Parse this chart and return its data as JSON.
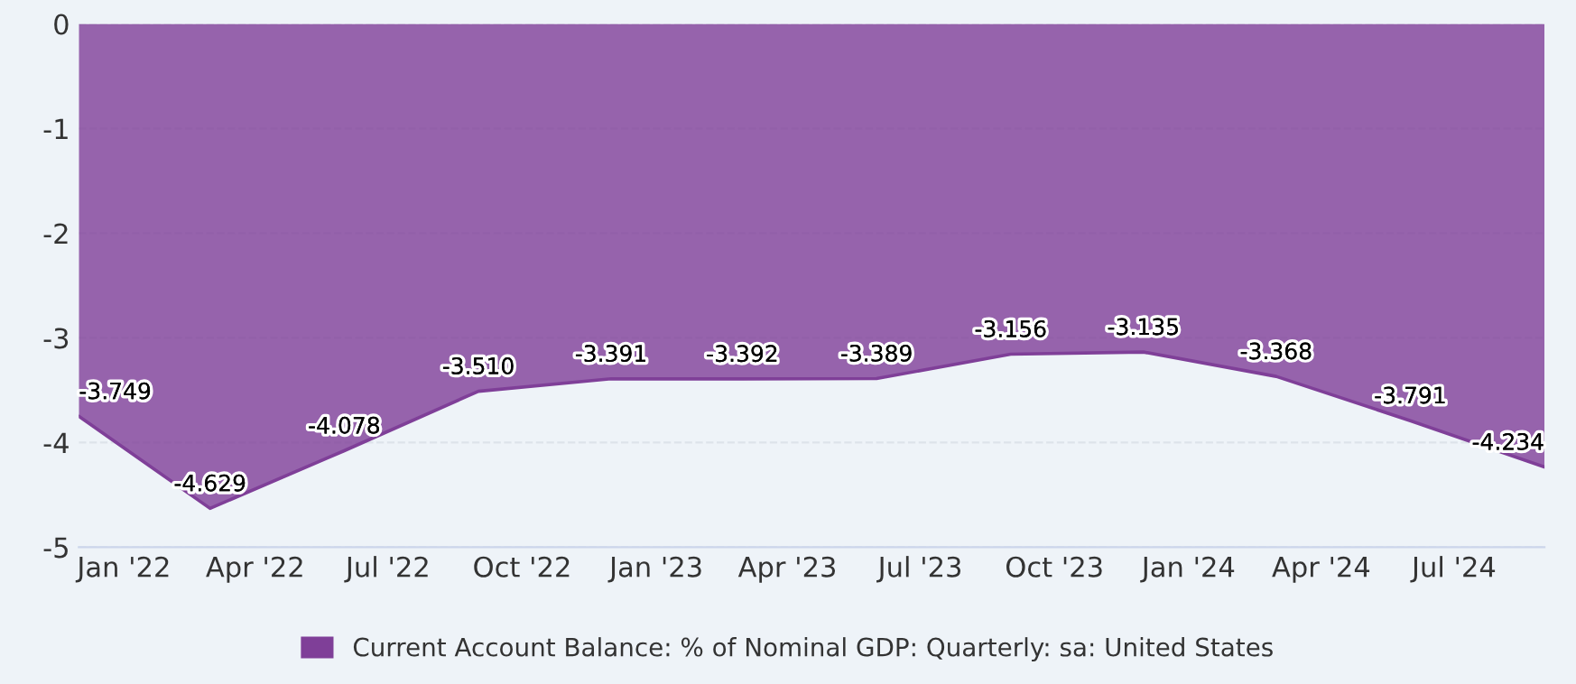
{
  "chart_data": {
    "type": "area",
    "x": [
      "2021-12",
      "2022-03",
      "2022-06",
      "2022-09",
      "2022-12",
      "2023-03",
      "2023-06",
      "2023-09",
      "2023-12",
      "2024-03",
      "2024-06",
      "2024-09"
    ],
    "series": [
      {
        "name": "Current Account Balance: % of Nominal GDP: Quarterly: sa: United States",
        "color": "#7f3f98",
        "values": [
          -3.749,
          -4.629,
          -4.078,
          -3.51,
          -3.391,
          -3.392,
          -3.389,
          -3.156,
          -3.135,
          -3.368,
          -3.791,
          -4.234
        ]
      }
    ],
    "xlim": [
      "2021-12",
      "2024-09"
    ],
    "xticks": [
      {
        "value": "2022-01",
        "label": "Jan '22"
      },
      {
        "value": "2022-04",
        "label": "Apr '22"
      },
      {
        "value": "2022-07",
        "label": "Jul '22"
      },
      {
        "value": "2022-10",
        "label": "Oct '22"
      },
      {
        "value": "2023-01",
        "label": "Jan '23"
      },
      {
        "value": "2023-04",
        "label": "Apr '23"
      },
      {
        "value": "2023-07",
        "label": "Jul '23"
      },
      {
        "value": "2023-10",
        "label": "Oct '23"
      },
      {
        "value": "2024-01",
        "label": "Jan '24"
      },
      {
        "value": "2024-04",
        "label": "Apr '24"
      },
      {
        "value": "2024-07",
        "label": "Jul '24"
      }
    ],
    "ylim": [
      -5,
      0
    ],
    "yticks": [
      0,
      -1,
      -2,
      -3,
      -4,
      -5
    ],
    "value_labels": [
      "-3.749",
      "-4.629",
      "-4.078",
      "-3.510",
      "-3.391",
      "-3.392",
      "-3.389",
      "-3.156",
      "-3.135",
      "-3.368",
      "-3.791",
      "-4.234"
    ],
    "grid": "y",
    "legend": "bottom"
  }
}
